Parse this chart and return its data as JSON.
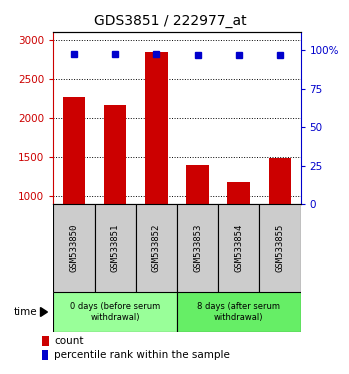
{
  "title": "GDS3851 / 222977_at",
  "samples": [
    "GSM533850",
    "GSM533851",
    "GSM533852",
    "GSM533853",
    "GSM533854",
    "GSM533855"
  ],
  "counts": [
    2270,
    2170,
    2850,
    1400,
    1175,
    1490
  ],
  "percentile_ranks": [
    98,
    98,
    98,
    97,
    97,
    97
  ],
  "bar_color": "#cc0000",
  "dot_color": "#0000cc",
  "ylim_left": [
    900,
    3100
  ],
  "ylim_right": [
    0,
    112
  ],
  "yticks_left": [
    1000,
    1500,
    2000,
    2500,
    3000
  ],
  "yticks_right": [
    0,
    25,
    50,
    75,
    100
  ],
  "ytick_labels_right": [
    "0",
    "25",
    "50",
    "75",
    "100%"
  ],
  "groups": [
    {
      "label": "0 days (before serum\nwithdrawal)",
      "samples": [
        0,
        1,
        2
      ],
      "color": "#99ff99"
    },
    {
      "label": "8 days (after serum\nwithdrawal)",
      "samples": [
        3,
        4,
        5
      ],
      "color": "#66ee66"
    }
  ],
  "xlabel_time": "time",
  "legend_count": "count",
  "legend_percentile": "percentile rank within the sample",
  "background_plot": "#ffffff",
  "sample_box_color": "#cccccc",
  "left_tick_color": "#cc0000",
  "right_tick_color": "#0000cc",
  "title_fontsize": 10,
  "tick_fontsize": 7.5,
  "bar_width": 0.55
}
